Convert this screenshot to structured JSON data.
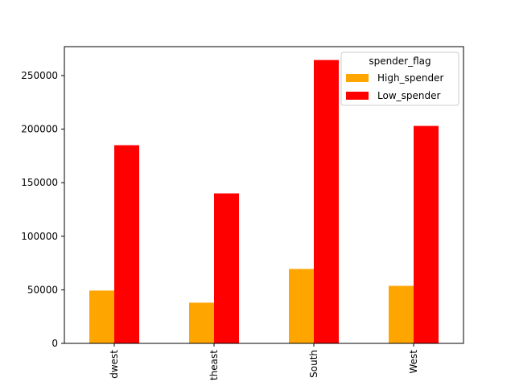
{
  "chart_data": {
    "type": "bar",
    "title": "",
    "xlabel": "",
    "ylabel": "",
    "categories": [
      "Midwest",
      "Northeast",
      "South",
      "West"
    ],
    "visible_tick_labels": [
      "dwest",
      "theast",
      "South",
      "West"
    ],
    "series": [
      {
        "name": "High_spender",
        "color": "#ffa500",
        "values": [
          49300,
          38000,
          69500,
          53700
        ]
      },
      {
        "name": "Low_spender",
        "color": "#ff0000",
        "values": [
          185000,
          140000,
          264500,
          203000
        ]
      }
    ],
    "ylim": [
      0,
      277000
    ],
    "yticks": [
      0,
      50000,
      100000,
      150000,
      200000,
      250000
    ],
    "ytick_labels": [
      "0",
      "50000",
      "100000",
      "150000",
      "200000",
      "250000"
    ],
    "grid": false,
    "legend": {
      "title": "spender_flag",
      "placement": "top-right"
    }
  }
}
